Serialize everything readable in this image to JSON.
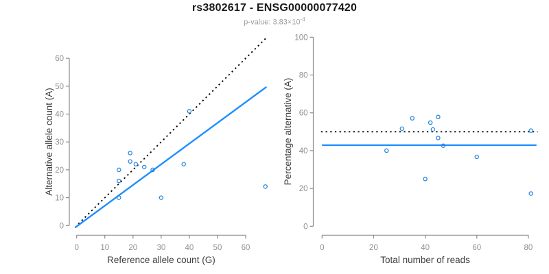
{
  "header": {
    "title": "rs3802617 - ENSG00000077420",
    "subtitle_prefix": "p-value: 3.83×10",
    "subtitle_exponent": "-4"
  },
  "palette": {
    "point_blue": "#2b87dd",
    "line_blue": "#1e8fff",
    "dotted_black": "#0a0a0a",
    "axis_gray": "#8b8b8b",
    "tick_label_gray": "#8f8f8f",
    "axis_title_gray": "#3d3d3d",
    "subtitle_gray": "#9e9e9e"
  },
  "chart_data": [
    {
      "type": "scatter",
      "title": "",
      "xlabel": "Reference allele count (G)",
      "ylabel": "Alternative allele count (A)",
      "xticks": [
        0,
        10,
        20,
        30,
        40,
        50,
        60
      ],
      "yticks": [
        0,
        10,
        20,
        30,
        40,
        50,
        60
      ],
      "xlim": [
        0,
        67.5
      ],
      "ylim": [
        0,
        67.5
      ],
      "grid": false,
      "legend": "none",
      "points": [
        [
          15,
          10
        ],
        [
          30,
          10
        ],
        [
          15,
          16
        ],
        [
          15,
          20
        ],
        [
          19,
          23
        ],
        [
          21,
          22
        ],
        [
          24,
          21
        ],
        [
          19,
          26
        ],
        [
          27,
          20
        ],
        [
          38,
          22
        ],
        [
          40,
          41
        ],
        [
          67,
          14
        ]
      ],
      "lines": [
        {
          "name": "identity-line",
          "style": "dotted",
          "color": "#0a0a0a",
          "x1": 0.6,
          "y1": 0.6,
          "x2": 67.3,
          "y2": 67.3
        },
        {
          "name": "regression-line",
          "style": "solid",
          "color": "#1e8fff",
          "x1": -0.4,
          "y1": -0.6,
          "x2": 67.2,
          "y2": 49.6
        }
      ]
    },
    {
      "type": "scatter",
      "title": "",
      "xlabel": "Total number of reads",
      "ylabel": "Percentage alternative (A)",
      "xticks": [
        0,
        20,
        40,
        60,
        80
      ],
      "yticks": [
        0,
        20,
        40,
        60,
        80,
        100
      ],
      "xlim": [
        0,
        83.6
      ],
      "ylim": [
        0,
        100
      ],
      "grid": false,
      "legend": "none",
      "points": [
        [
          25,
          40
        ],
        [
          40,
          25
        ],
        [
          31,
          51.6
        ],
        [
          35,
          57.1
        ],
        [
          42,
          54.8
        ],
        [
          43,
          51.2
        ],
        [
          45,
          46.7
        ],
        [
          45,
          57.8
        ],
        [
          47,
          42.6
        ],
        [
          60,
          36.7
        ],
        [
          81,
          50.6
        ],
        [
          81,
          17.3
        ]
      ],
      "lines": [
        {
          "name": "fifty-percent-line",
          "style": "dotted",
          "color": "#0a0a0a",
          "x1": -0.4,
          "y1": 50,
          "x2": 83.6,
          "y2": 50
        },
        {
          "name": "mean-percentage-line",
          "style": "solid",
          "color": "#1e8fff",
          "x1": 0.2,
          "y1": 42.9,
          "x2": 82.9,
          "y2": 42.9
        }
      ]
    }
  ]
}
